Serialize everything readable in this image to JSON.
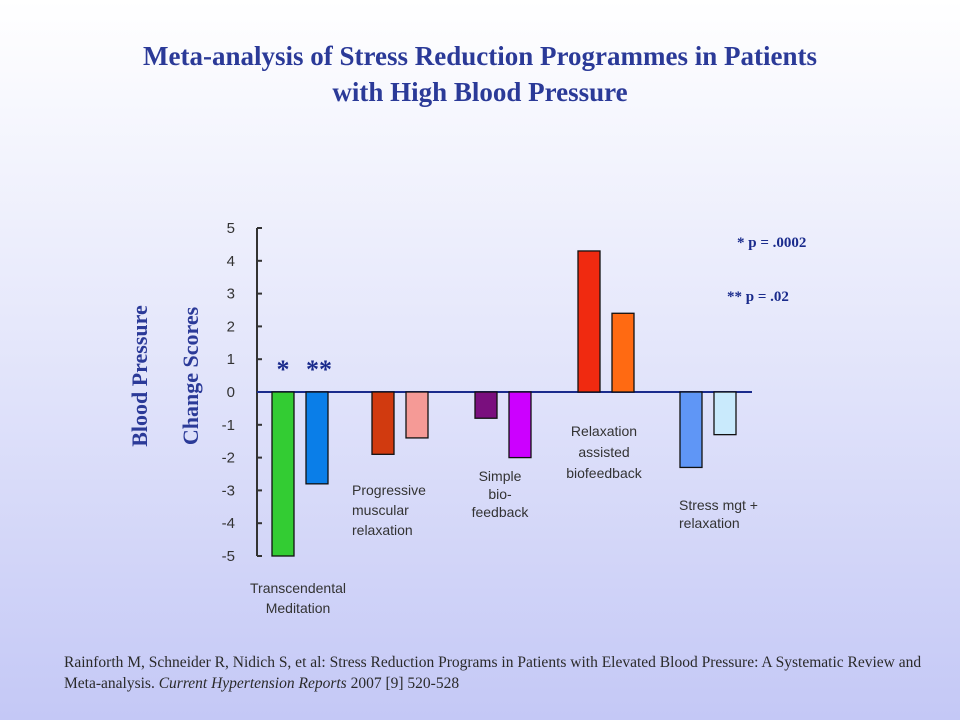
{
  "title_lines": [
    "Meta-analysis of Stress Reduction Programmes in Patients",
    "with High Blood Pressure"
  ],
  "chart_data": {
    "type": "bar",
    "title": "Meta-analysis of Stress Reduction Programmes in Patients with High Blood Pressure",
    "ylabel_lines": [
      "Blood Pressure",
      "Change Scores"
    ],
    "ylim": [
      -5,
      5
    ],
    "yticks": [
      "5",
      "4",
      "3",
      "2",
      "1",
      "0",
      "-1",
      "-2",
      "-3",
      "-4",
      "-5"
    ],
    "grid": false,
    "groups": [
      {
        "label_lines": [
          "Transcendental",
          "Meditation"
        ],
        "bars": [
          {
            "value": -5.0,
            "color": "#33cc33"
          },
          {
            "value": -2.8,
            "color": "#0a7ee8"
          }
        ]
      },
      {
        "label_lines": [
          "Progressive",
          "muscular",
          "relaxation"
        ],
        "bars": [
          {
            "value": -1.9,
            "color": "#d13a0f"
          },
          {
            "value": -1.4,
            "color": "#f59a96"
          }
        ]
      },
      {
        "label_lines": [
          "Simple",
          "bio-",
          "feedback"
        ],
        "bars": [
          {
            "value": -0.8,
            "color": "#7a0f7e"
          },
          {
            "value": -2.0,
            "color": "#cc00ff"
          }
        ]
      },
      {
        "label_lines": [
          "Relaxation",
          "assisted",
          "biofeedback"
        ],
        "bars": [
          {
            "value": 4.3,
            "color": "#f02a10"
          },
          {
            "value": 2.4,
            "color": "#ff6a12"
          }
        ]
      },
      {
        "label_lines": [
          "Stress mgt +",
          "relaxation"
        ],
        "bars": [
          {
            "value": -2.3,
            "color": "#5f96f6"
          },
          {
            "value": -1.3,
            "color": "#c9eafc"
          }
        ]
      }
    ],
    "significance_markers": [
      "*",
      "**"
    ],
    "annotations": [
      "*  p = .0002",
      "**  p = .02"
    ]
  },
  "citation": {
    "text_before": "Rainforth M, Schneider R, Nidich S, et al: Stress Reduction Programs in Patients with Elevated Blood Pressure: A Systematic Review and Meta-analysis. ",
    "journal": "Current Hypertension Reports",
    "text_after": " 2007 [9] 520-528"
  }
}
